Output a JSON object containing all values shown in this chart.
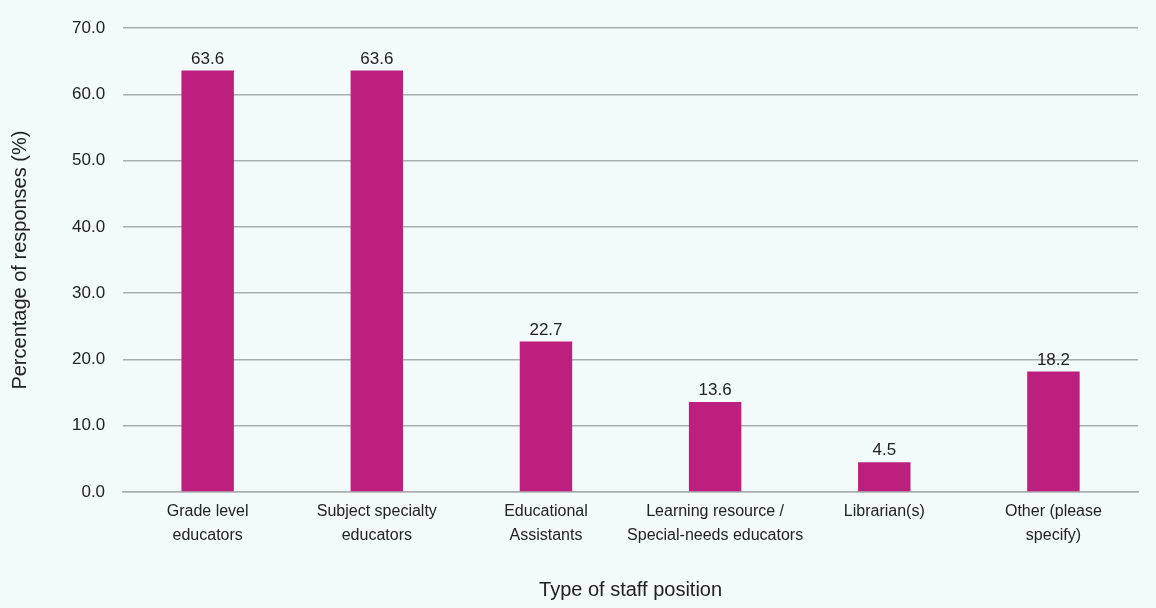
{
  "chart_data": {
    "type": "bar",
    "xlabel": "Type of staff position",
    "ylabel": "Percentage of responses (%)",
    "categories": [
      "Grade level educators",
      "Subject specialty educators",
      "Educational Assistants",
      "Learning resource / Special-needs educators",
      "Librarian(s)",
      "Other (please specify)"
    ],
    "values": [
      63.6,
      63.6,
      22.7,
      13.6,
      4.5,
      18.2
    ],
    "color": "#bc1f7e",
    "ylim": [
      0,
      70
    ],
    "yticks": [
      {
        "value": 0,
        "label": "0.0"
      },
      {
        "value": 10,
        "label": "10.0"
      },
      {
        "value": 20,
        "label": "20.0"
      },
      {
        "value": 30,
        "label": "30.0"
      },
      {
        "value": 40,
        "label": "40.0"
      },
      {
        "value": 50,
        "label": "50.0"
      },
      {
        "value": 60,
        "label": "60.0"
      },
      {
        "value": 70,
        "label": "70.0"
      }
    ],
    "grid": "y",
    "data_labels": true
  }
}
